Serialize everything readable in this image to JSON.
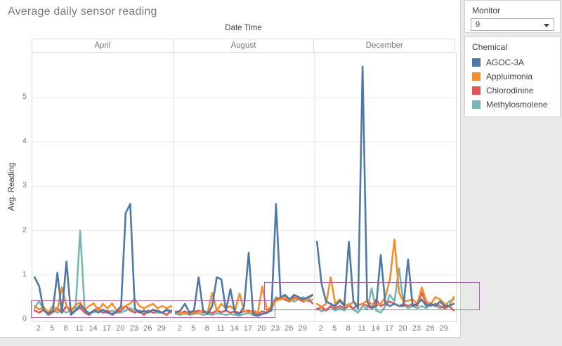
{
  "title": "Average daily sensor reading",
  "monitor_panel": {
    "label": "Monitor",
    "value": "9"
  },
  "legend_panel": {
    "title": "Chemical",
    "items": [
      {
        "label": "AGOC-3A",
        "color": "#4e79a7"
      },
      {
        "label": "Appluimonia",
        "color": "#f28e2b"
      },
      {
        "label": "Chlorodinine",
        "color": "#e15759"
      },
      {
        "label": "Methylosmolene",
        "color": "#76b7b2"
      }
    ]
  },
  "chart_data": {
    "type": "line",
    "title": "Average daily sensor reading",
    "x_axis_title": "Date Time",
    "y_axis_title": "Avg. Reading",
    "panels": [
      "April",
      "August",
      "December"
    ],
    "x_ticks": [
      2,
      5,
      8,
      11,
      14,
      17,
      20,
      23,
      26,
      29
    ],
    "y_ticks": [
      0,
      1,
      2,
      3,
      4,
      5
    ],
    "ylim": [
      0,
      5.9
    ],
    "grid": true,
    "legend_position": "right",
    "annotation_color": "#a666a8",
    "annotations": [
      {
        "type": "rect",
        "from_month": "April",
        "from_day": 1,
        "clamp_left": true,
        "to_month": "August",
        "to_day": 23,
        "value_min": 0.03,
        "value_max": 0.42
      },
      {
        "type": "rect",
        "from_month": "August",
        "from_day": 20.5,
        "to_month": "December",
        "to_day": 31,
        "extends_beyond_plot": true,
        "value_min": 0.21,
        "value_max": 0.84
      }
    ],
    "series": [
      {
        "name": "AGOC-3A",
        "color": "#4e79a7",
        "values": {
          "April": [
            0.95,
            0.75,
            0.2,
            0.12,
            0.2,
            1.05,
            0.15,
            1.3,
            0.1,
            0.2,
            0.32,
            0.22,
            0.12,
            0.2,
            0.15,
            0.22,
            0.15,
            0.12,
            0.18,
            0.3,
            2.4,
            2.6,
            0.25,
            0.15,
            0.2,
            0.15,
            0.22,
            0.18,
            0.15,
            0.22,
            0.18
          ],
          "August": [
            0.15,
            0.2,
            0.35,
            0.15,
            0.2,
            0.95,
            0.2,
            0.12,
            0.3,
            0.95,
            0.9,
            0.2,
            0.68,
            0.15,
            0.12,
            0.3,
            1.5,
            0.1,
            0.08,
            0.12,
            0.15,
            0.2,
            2.6,
            0.5,
            0.55,
            0.45,
            0.55,
            0.5,
            0.45,
            0.5,
            0.55
          ],
          "December": [
            1.75,
            0.8,
            0.4,
            0.35,
            0.3,
            0.42,
            0.3,
            1.75,
            0.4,
            0.25,
            5.7,
            0.4,
            0.25,
            0.3,
            1.45,
            0.35,
            0.3,
            0.35,
            0.3,
            0.3,
            1.35,
            0.3,
            0.35,
            0.45,
            0.3,
            0.35,
            0.3,
            0.4,
            0.3,
            0.3,
            0.35
          ]
        }
      },
      {
        "name": "Appluimonia",
        "color": "#f28e2b",
        "values": {
          "April": [
            0.3,
            0.22,
            0.28,
            0.15,
            0.3,
            0.2,
            0.72,
            0.3,
            0.2,
            0.32,
            0.38,
            0.22,
            0.3,
            0.36,
            0.2,
            0.35,
            0.25,
            0.36,
            0.2,
            0.26,
            0.3,
            0.36,
            0.46,
            0.3,
            0.25,
            0.3,
            0.35,
            0.25,
            0.3,
            0.25,
            0.3
          ],
          "August": [
            0.12,
            0.16,
            0.12,
            0.18,
            0.12,
            0.16,
            0.2,
            0.15,
            0.6,
            0.2,
            0.35,
            0.25,
            0.3,
            0.2,
            0.58,
            0.2,
            0.15,
            0.2,
            0.15,
            0.74,
            0.2,
            0.3,
            0.42,
            0.45,
            0.5,
            0.42,
            0.46,
            0.5,
            0.42,
            0.45,
            0.55
          ],
          "December": [
            0.35,
            0.28,
            0.35,
            0.95,
            0.35,
            0.45,
            0.35,
            0.3,
            0.4,
            0.32,
            0.35,
            0.42,
            0.35,
            0.3,
            0.35,
            0.5,
            0.9,
            1.8,
            0.6,
            0.4,
            0.42,
            0.45,
            0.35,
            0.72,
            0.4,
            0.35,
            0.5,
            0.45,
            0.35,
            0.3,
            0.5
          ]
        }
      },
      {
        "name": "Chlorodinine",
        "color": "#e15759",
        "values": {
          "April": [
            0.2,
            0.15,
            0.22,
            0.1,
            0.16,
            0.26,
            0.15,
            0.3,
            0.15,
            0.2,
            0.26,
            0.15,
            0.1,
            0.2,
            0.26,
            0.15,
            0.2,
            0.1,
            0.16,
            0.2,
            0.3,
            0.2,
            0.15,
            0.2,
            0.1,
            0.2,
            0.15,
            0.2,
            0.15,
            0.1,
            0.2
          ],
          "August": [
            0.18,
            0.14,
            0.18,
            0.12,
            0.16,
            0.2,
            0.15,
            0.18,
            0.14,
            0.2,
            0.16,
            0.2,
            0.15,
            0.18,
            0.14,
            0.18,
            0.2,
            0.15,
            0.12,
            0.18,
            0.15,
            0.25,
            0.45,
            0.5,
            0.44,
            0.4,
            0.5,
            0.45,
            0.4,
            0.46,
            0.36
          ],
          "December": [
            0.22,
            0.28,
            0.2,
            0.3,
            0.25,
            0.3,
            0.25,
            0.3,
            0.25,
            0.32,
            0.35,
            0.3,
            0.25,
            0.45,
            0.3,
            0.35,
            0.4,
            0.35,
            0.3,
            0.35,
            0.3,
            0.35,
            0.3,
            0.6,
            0.35,
            0.3,
            0.35,
            0.3,
            0.25,
            0.3,
            0.2
          ]
        }
      },
      {
        "name": "Methylosmolene",
        "color": "#76b7b2",
        "values": {
          "April": [
            0.25,
            0.42,
            0.2,
            0.15,
            0.2,
            0.15,
            0.2,
            0.15,
            0.2,
            0.26,
            2.0,
            0.2,
            0.15,
            0.16,
            0.2,
            0.15,
            0.15,
            0.2,
            0.15,
            0.15,
            0.2,
            0.25,
            0.2,
            0.15,
            0.15,
            0.2,
            0.15,
            0.15,
            0.15,
            0.2,
            0.15
          ],
          "August": [
            0.12,
            0.1,
            0.14,
            0.1,
            0.12,
            0.14,
            0.1,
            0.12,
            0.1,
            0.14,
            0.12,
            0.1,
            0.12,
            0.1,
            0.08,
            0.12,
            0.14,
            0.1,
            0.08,
            0.12,
            0.14,
            0.3,
            0.5,
            0.45,
            0.5,
            0.45,
            0.4,
            0.46,
            0.5,
            0.4,
            0.45
          ],
          "December": [
            0.25,
            0.18,
            0.22,
            0.28,
            0.2,
            0.25,
            0.2,
            0.35,
            0.22,
            0.15,
            0.3,
            0.22,
            0.7,
            0.2,
            0.15,
            0.3,
            0.55,
            0.4,
            1.15,
            0.35,
            0.25,
            0.3,
            0.25,
            0.3,
            0.25,
            0.35,
            0.3,
            0.25,
            0.3,
            0.4,
            0.45
          ]
        }
      }
    ]
  }
}
